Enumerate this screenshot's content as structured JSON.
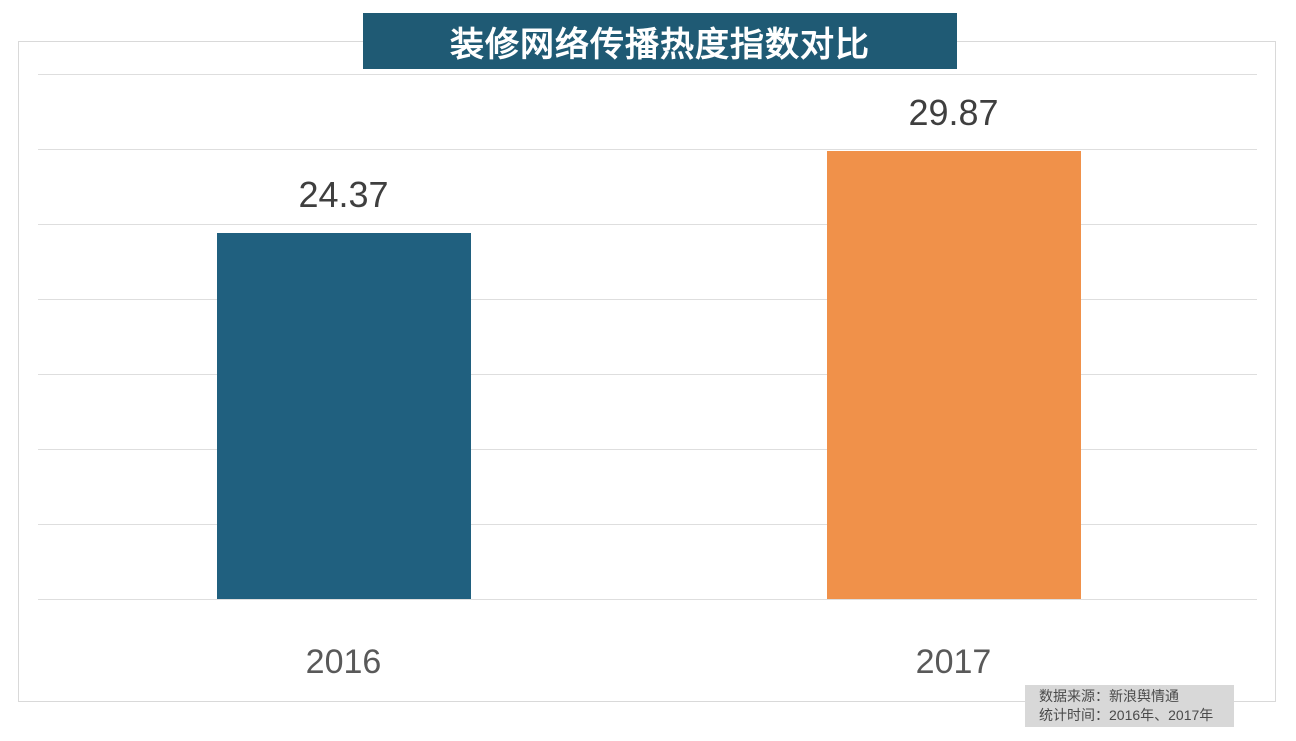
{
  "title": "装修网络传播热度指数对比",
  "source_note": {
    "line1": "数据来源：新浪舆情通",
    "line2": "统计时间：2016年、2017年"
  },
  "colors": {
    "banner_bg": "#1f5a74",
    "banner_text": "#ffffff",
    "bar_2016": "#20607f",
    "bar_2017": "#f0914a",
    "gridline": "#dedede",
    "frame_border": "#d9d9d9",
    "value_label_text": "#3f3f3f",
    "category_label_text": "#595959",
    "source_box_bg": "#d8d8d8"
  },
  "chart_data": {
    "type": "bar",
    "title": "装修网络传播热度指数对比",
    "categories": [
      "2016",
      "2017"
    ],
    "values": [
      24.37,
      29.87
    ],
    "value_labels": [
      "24.37",
      "29.87"
    ],
    "bar_colors": [
      "#20607f",
      "#f0914a"
    ],
    "xlabel": "",
    "ylabel": "",
    "ylim": [
      0,
      35
    ],
    "grid_step": 5,
    "grid": true,
    "legend": false,
    "y_tick_labels_shown": false,
    "annotations": [
      "数据来源：新浪舆情通",
      "统计时间：2016年、2017年"
    ]
  }
}
